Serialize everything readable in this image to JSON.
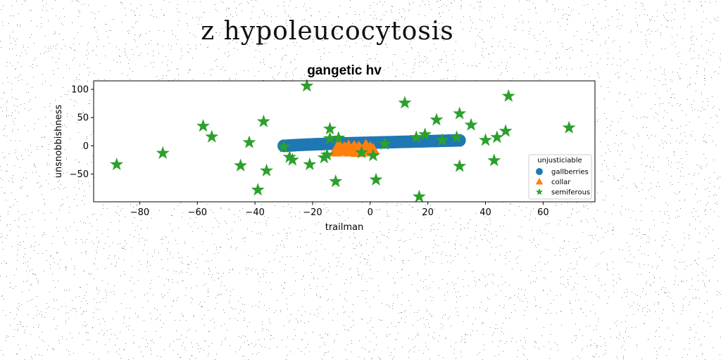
{
  "figure": {
    "suptitle": "z hypoleucocytosis"
  },
  "chart_data": {
    "type": "scatter",
    "title": "gangetic hv",
    "xlabel": "trailman",
    "ylabel": "unsnobbishness",
    "xlim": [
      -96,
      78
    ],
    "ylim": [
      -99,
      115
    ],
    "xticks": [
      -80,
      -60,
      -40,
      -20,
      0,
      20,
      40,
      60
    ],
    "yticks": [
      -50,
      0,
      50,
      100
    ],
    "grid": false,
    "legend": {
      "title": "unjusticiable",
      "position": "lower-right"
    },
    "series": [
      {
        "name": "gallberries",
        "marker": "circle",
        "color": "#1f77b4",
        "points": [
          [
            -30,
            0
          ],
          [
            -29,
            0.3
          ],
          [
            -28,
            0.6
          ],
          [
            -27,
            0.9
          ],
          [
            -26,
            1.2
          ],
          [
            -25,
            1.5
          ],
          [
            -24,
            1.7
          ],
          [
            -23,
            2
          ],
          [
            -22,
            2.2
          ],
          [
            -21,
            2.4
          ],
          [
            -20,
            2.6
          ],
          [
            -19,
            2.8
          ],
          [
            -18,
            3
          ],
          [
            -17,
            3.1
          ],
          [
            -16,
            3.3
          ],
          [
            -15,
            3.5
          ],
          [
            -14,
            3.6
          ],
          [
            -13,
            3.8
          ],
          [
            -12,
            3.9
          ],
          [
            -11,
            4.1
          ],
          [
            -10,
            4.2
          ],
          [
            -9,
            4.4
          ],
          [
            -8,
            4.5
          ],
          [
            -7,
            4.6
          ],
          [
            -6,
            4.8
          ],
          [
            -5,
            4.9
          ],
          [
            -4,
            5
          ],
          [
            -3,
            5.2
          ],
          [
            -2,
            5.3
          ],
          [
            -1,
            5.4
          ],
          [
            0,
            5.6
          ],
          [
            1,
            5.7
          ],
          [
            2,
            5.8
          ],
          [
            3,
            6
          ],
          [
            4,
            6.1
          ],
          [
            5,
            6.2
          ],
          [
            6,
            6.4
          ],
          [
            7,
            6.5
          ],
          [
            8,
            6.6
          ],
          [
            9,
            6.8
          ],
          [
            10,
            6.9
          ],
          [
            11,
            7
          ],
          [
            12,
            7.2
          ],
          [
            13,
            7.3
          ],
          [
            14,
            7.4
          ],
          [
            15,
            7.6
          ],
          [
            16,
            7.7
          ],
          [
            17,
            7.8
          ],
          [
            18,
            8
          ],
          [
            19,
            8.1
          ],
          [
            20,
            8.2
          ],
          [
            21,
            8.4
          ],
          [
            22,
            8.5
          ],
          [
            23,
            8.6
          ],
          [
            24,
            8.8
          ],
          [
            25,
            8.9
          ],
          [
            26,
            9
          ],
          [
            27,
            9.2
          ],
          [
            28,
            9.3
          ],
          [
            29,
            9.4
          ],
          [
            30,
            9.6
          ],
          [
            31,
            9.7
          ]
        ]
      },
      {
        "name": "collar",
        "marker": "triangle",
        "color": "#ff7f0e",
        "points": [
          [
            -12,
            -10
          ],
          [
            -11,
            -6
          ],
          [
            -10,
            -9
          ],
          [
            -9,
            -4
          ],
          [
            -8,
            -8
          ],
          [
            -7,
            -10
          ],
          [
            -6,
            -5
          ],
          [
            -5,
            -8
          ],
          [
            -4,
            -3
          ],
          [
            -3,
            -9
          ],
          [
            -2,
            -6
          ],
          [
            -1,
            -10
          ],
          [
            0,
            -4
          ],
          [
            1,
            -7
          ],
          [
            -10.5,
            -2
          ],
          [
            -7.5,
            -1
          ],
          [
            -4.5,
            -11
          ],
          [
            -1.5,
            0
          ],
          [
            0.5,
            -9
          ],
          [
            -8.5,
            -6
          ],
          [
            -5.5,
            -2
          ],
          [
            -2.5,
            -10
          ],
          [
            -11.5,
            -4
          ],
          [
            -3.5,
            -6
          ]
        ]
      },
      {
        "name": "semiferous",
        "marker": "star",
        "color": "#2ca02c",
        "points": [
          [
            -22,
            106
          ],
          [
            48,
            88
          ],
          [
            12,
            76
          ],
          [
            31,
            57
          ],
          [
            23,
            46
          ],
          [
            35,
            37
          ],
          [
            47,
            26
          ],
          [
            -14,
            30
          ],
          [
            -37,
            43
          ],
          [
            -58,
            35
          ],
          [
            -55,
            16
          ],
          [
            -72,
            -13
          ],
          [
            -88,
            -33
          ],
          [
            -42,
            6
          ],
          [
            -45,
            -35
          ],
          [
            -36,
            -44
          ],
          [
            -39,
            -78
          ],
          [
            -28,
            -20
          ],
          [
            -27,
            -25
          ],
          [
            -21,
            -33
          ],
          [
            -16,
            -21
          ],
          [
            -15,
            -16
          ],
          [
            -11,
            14
          ],
          [
            -14,
            13
          ],
          [
            -12,
            -63
          ],
          [
            -3,
            -12
          ],
          [
            1,
            -17
          ],
          [
            2,
            -60
          ],
          [
            5,
            3
          ],
          [
            16,
            15
          ],
          [
            19,
            20
          ],
          [
            25,
            10
          ],
          [
            30,
            15
          ],
          [
            31,
            -36
          ],
          [
            40,
            10
          ],
          [
            43,
            -26
          ],
          [
            44,
            15
          ],
          [
            69,
            32
          ],
          [
            17,
            -90
          ],
          [
            -30,
            -2
          ]
        ]
      }
    ]
  }
}
